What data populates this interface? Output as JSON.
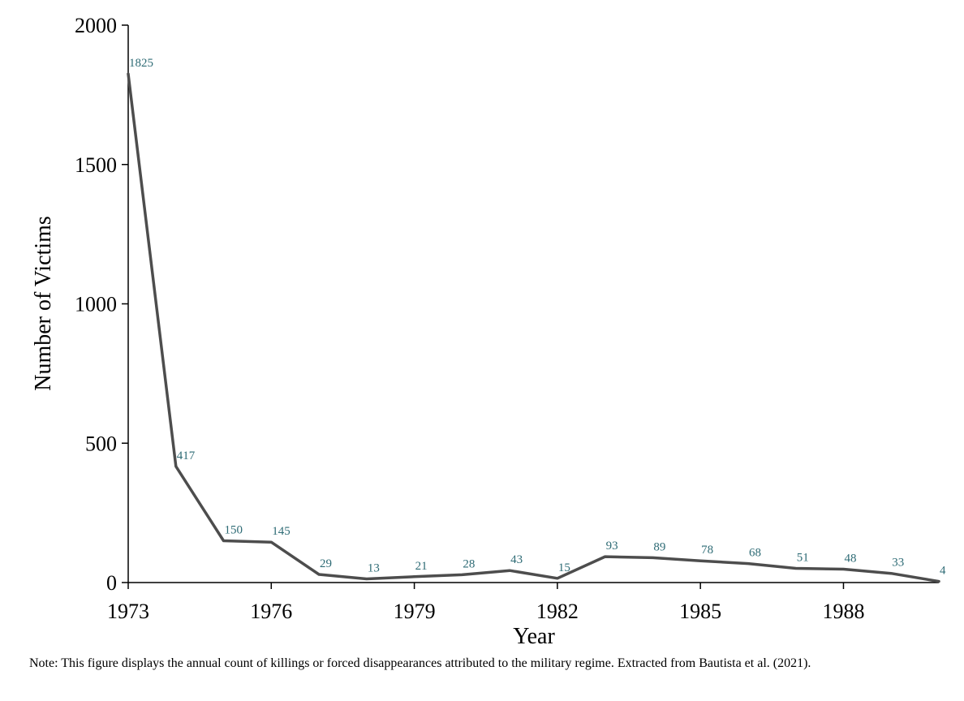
{
  "chart_data": {
    "type": "line",
    "title": "",
    "xlabel": "Year",
    "ylabel": "Number of Victims",
    "xlim": [
      1973,
      1990
    ],
    "ylim": [
      0,
      2000
    ],
    "x_ticks": [
      1973,
      1976,
      1979,
      1982,
      1985,
      1988
    ],
    "x_tick_labels": [
      "1973",
      "1976",
      "1979",
      "1982",
      "1985",
      "1988"
    ],
    "y_ticks": [
      0,
      500,
      1000,
      1500,
      2000
    ],
    "y_tick_labels": [
      "0",
      "500",
      "1000",
      "1500",
      "2000"
    ],
    "grid": false,
    "legend": "none",
    "line_color": "#4d4d4d",
    "label_color": "#2e6b75",
    "series": [
      {
        "x": [
          1973,
          1974,
          1975,
          1976,
          1977,
          1978,
          1979,
          1980,
          1981,
          1982,
          1983,
          1984,
          1985,
          1986,
          1987,
          1988,
          1989,
          1990
        ],
        "values": [
          1825,
          417,
          150,
          145,
          29,
          13,
          21,
          28,
          43,
          15,
          93,
          89,
          78,
          68,
          51,
          48,
          33,
          4
        ],
        "labels": [
          "1825",
          "417",
          "150",
          "145",
          "29",
          "13",
          "21",
          "28",
          "43",
          "15",
          "93",
          "89",
          "78",
          "68",
          "51",
          "48",
          "33",
          "4"
        ]
      }
    ]
  },
  "note": "Note: This figure displays the annual count of killings or forced disappearances attributed to the military regime. Extracted from Bautista et al. (2021)."
}
